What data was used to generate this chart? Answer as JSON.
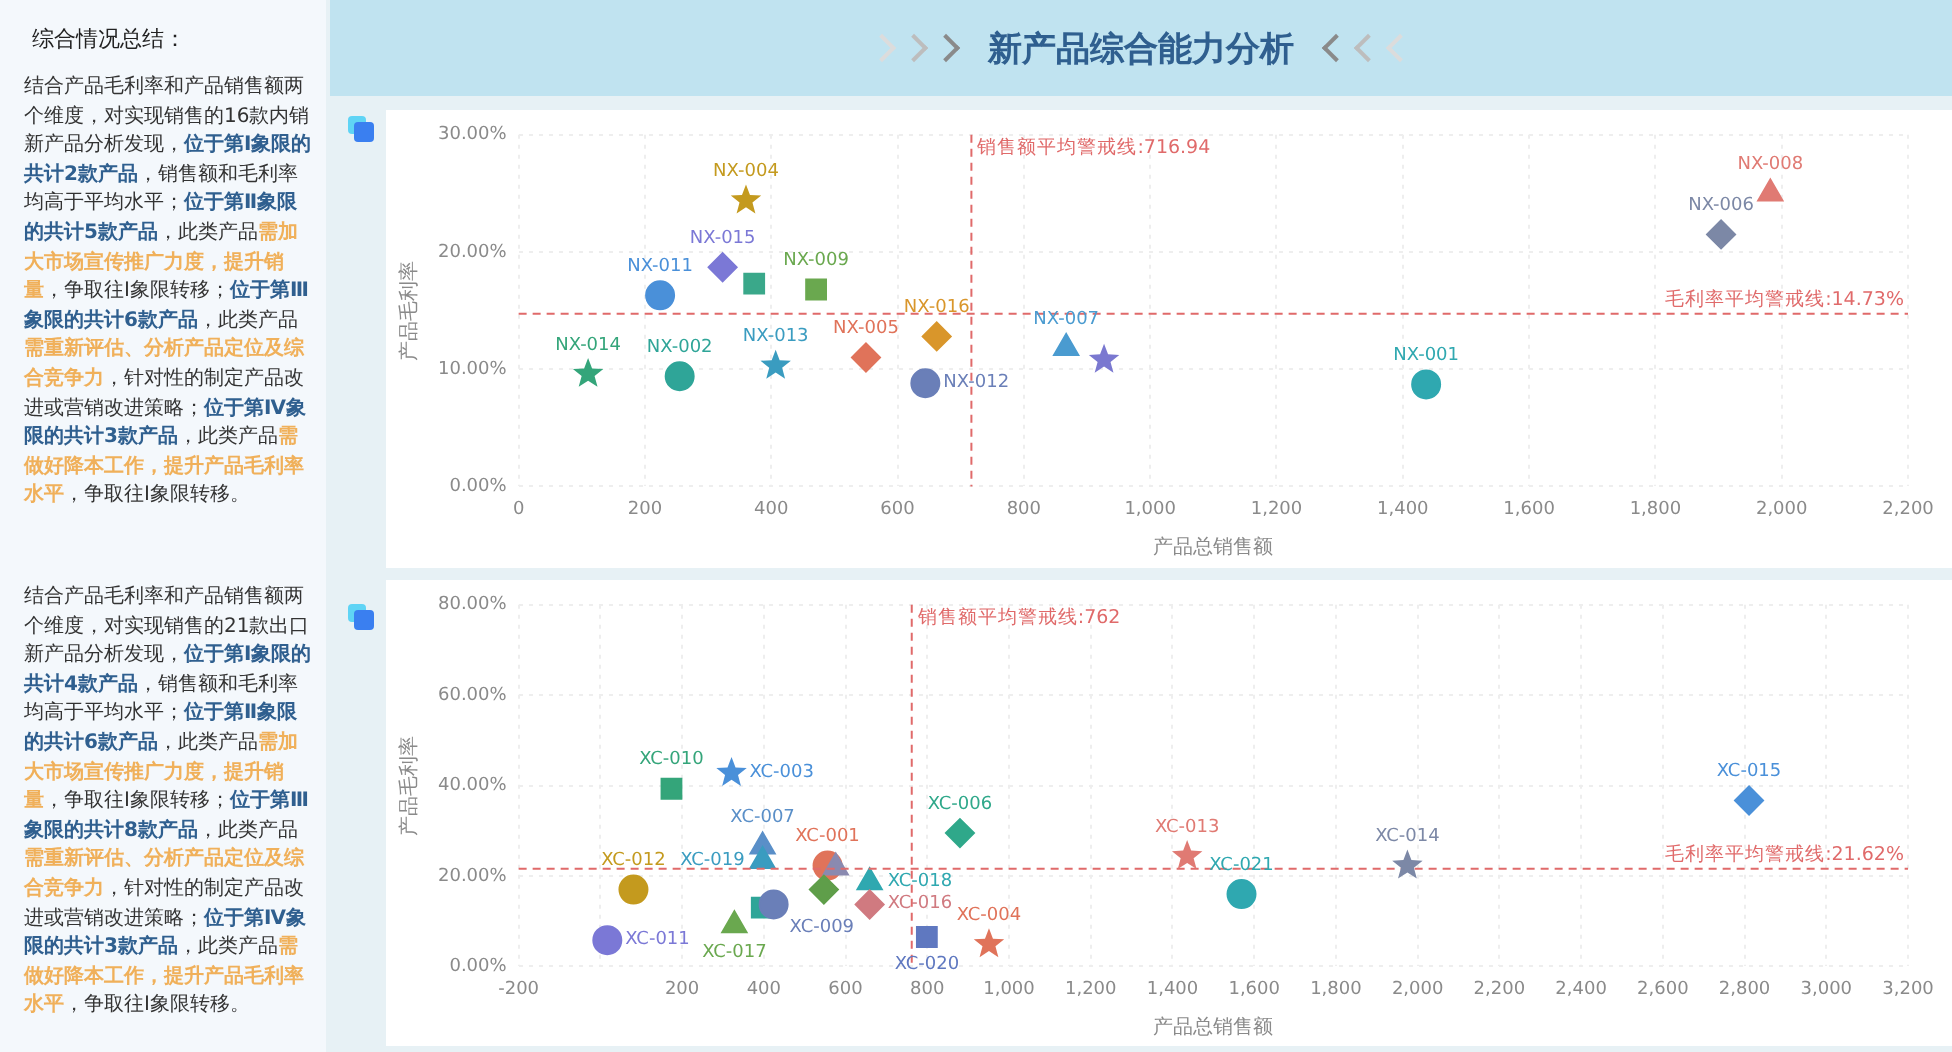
{
  "chart_data": [
    {
      "type": "other",
      "title": "新产品综合能力分析"
    },
    {
      "type": "other",
      "title": "综合情况总结：",
      "annotations": [
        "结合产品毛利率和产品销售额两个维度，对实现销售的16款内销新产品分析发现，",
        "位于第Ⅰ象限的共计2款产品",
        "，销售额和毛利率均高于平均水平；",
        "位于第Ⅱ象限的共计5款产品",
        "，此类产品",
        "需加大市场宣传推广力度，提升销量",
        "，争取往Ⅰ象限转移；",
        "位于第Ⅲ象限的共计6款产品",
        "，此类产品",
        "需重新评估、分析产品定位及综合竞争力",
        "，针对性的制定产品改进或营销改进策略；",
        "位于第Ⅳ象限的共计3款产品",
        "，此类产品",
        "需做好降本工作，提升产品毛利率水平",
        "，争取往Ⅰ象限转移。"
      ],
      "colors": [
        "#333333",
        "#2f5f8f",
        "#333333",
        "#2f5f8f",
        "#333333",
        "#f0b05a",
        "#333333",
        "#2f5f8f",
        "#333333",
        "#f0b05a",
        "#333333",
        "#2f5f8f",
        "#333333",
        "#f0b05a",
        "#333333"
      ]
    },
    {
      "type": "scatter",
      "xlabel": "产品总销售额",
      "ylabel": "产品毛利率",
      "xlim": [
        0,
        2200
      ],
      "xticks": [
        0,
        200,
        400,
        600,
        800,
        {
          "value": 1000,
          "label": "1,000"
        },
        {
          "value": 1200,
          "label": "1,200"
        },
        {
          "value": 1400,
          "label": "1,400"
        },
        {
          "value": 1600,
          "label": "1,600"
        },
        {
          "value": 1800,
          "label": "1,800"
        },
        {
          "value": 2000,
          "label": "2,000"
        },
        {
          "value": 2200,
          "label": "2,200"
        }
      ],
      "ylim": [
        0,
        30
      ],
      "yticks": [
        {
          "value": 0,
          "label": "0.00%"
        },
        {
          "value": 10,
          "label": "10.00%"
        },
        {
          "value": 20,
          "label": "20.00%"
        },
        {
          "value": 30,
          "label": "30.00%"
        }
      ],
      "grid": true,
      "legend": false,
      "ref_lines": [
        {
          "axis": "x",
          "value": 716.94,
          "label": "销售额平均警戒线:716.94",
          "color": "#e06a6a",
          "line_style": "dashed"
        },
        {
          "axis": "y",
          "value": 14.73,
          "label": "毛利率平均警戒线:14.73%",
          "color": "#e06a6a",
          "line_style": "dashed"
        }
      ],
      "series": [
        {
          "name": "NX-011",
          "color": "#4a90d9",
          "marker": "circle",
          "x": [
            224
          ],
          "values": [
            16.3
          ]
        },
        {
          "name": "NX-015",
          "color": "#7b78d6",
          "marker": "diamond",
          "x": [
            323
          ],
          "values": [
            18.7
          ]
        },
        {
          "name": "NX-004",
          "color": "#c49a1e",
          "marker": "star",
          "x": [
            360
          ],
          "values": [
            24.4
          ]
        },
        {
          "color": "#3aa88a",
          "marker": "square",
          "x": [
            373
          ],
          "values": [
            17.3
          ]
        },
        {
          "name": "NX-009",
          "color": "#6aa84f",
          "marker": "square",
          "x": [
            471
          ],
          "values": [
            16.8
          ]
        },
        {
          "name": "NX-014",
          "color": "#34a57a",
          "marker": "star",
          "x": [
            110
          ],
          "values": [
            9.6
          ]
        },
        {
          "name": "NX-002",
          "color": "#2fa598",
          "marker": "circle",
          "x": [
            255
          ],
          "values": [
            9.4
          ]
        },
        {
          "name": "NX-013",
          "color": "#3a9cc0",
          "marker": "star",
          "x": [
            407
          ],
          "values": [
            10.3
          ]
        },
        {
          "name": "NX-005",
          "color": "#e0735a",
          "marker": "diamond",
          "x": [
            550
          ],
          "values": [
            11.0
          ]
        },
        {
          "name": "NX-012",
          "color": "#6a7fb8",
          "marker": "circle",
          "x": [
            644
          ],
          "values": [
            8.8
          ]
        },
        {
          "name": "NX-016",
          "color": "#d9962b",
          "marker": "diamond",
          "x": [
            662
          ],
          "values": [
            12.8
          ]
        },
        {
          "name": "NX-007",
          "color": "#4a9bd0",
          "marker": "triangle",
          "x": [
            867
          ],
          "values": [
            11.8
          ]
        },
        {
          "color": "#7a78d0",
          "marker": "star",
          "x": [
            927
          ],
          "values": [
            10.8
          ]
        },
        {
          "name": "NX-001",
          "color": "#2fa8b0",
          "marker": "circle",
          "x": [
            1437
          ],
          "values": [
            8.7
          ]
        },
        {
          "name": "NX-006",
          "color": "#7c88a6",
          "marker": "diamond",
          "x": [
            1904
          ],
          "values": [
            21.5
          ]
        },
        {
          "name": "NX-008",
          "color": "#e07a73",
          "marker": "triangle",
          "x": [
            1982
          ],
          "values": [
            25.0
          ]
        }
      ]
    },
    {
      "type": "other",
      "annotations": [
        "结合产品毛利率和产品销售额两个维度，对实现销售的21款出口新产品分析发现，",
        "位于第Ⅰ象限的共计4款产品",
        "，销售额和毛利率均高于平均水平；",
        "位于第Ⅱ象限的共计6款产品",
        "，此类产品",
        "需加大市场宣传推广力度，提升销量",
        "，争取往Ⅰ象限转移；",
        "位于第Ⅲ象限的共计8款产品",
        "，此类产品",
        "需重新评估、分析产品定位及综合竞争力",
        "，针对性的制定产品改进或营销改进策略；",
        "位于第Ⅳ象限的共计3款产品",
        "，此类产品",
        "需做好降本工作，提升产品毛利率水平",
        "，争取往Ⅰ象限转移。"
      ],
      "colors": [
        "#333333",
        "#2f5f8f",
        "#333333",
        "#2f5f8f",
        "#333333",
        "#f0b05a",
        "#333333",
        "#2f5f8f",
        "#333333",
        "#f0b05a",
        "#333333",
        "#2f5f8f",
        "#333333",
        "#f0b05a",
        "#333333"
      ]
    },
    {
      "type": "scatter",
      "xlabel": "产品总销售额",
      "ylabel": "产品毛利率",
      "xlim": [
        -200,
        3200
      ],
      "xticks": [
        -200,
        {
          "value": 0,
          "label": null
        },
        200,
        400,
        600,
        800,
        {
          "value": 1000,
          "label": "1,000"
        },
        {
          "value": 1200,
          "label": "1,200"
        },
        {
          "value": 1400,
          "label": "1,400"
        },
        {
          "value": 1600,
          "label": "1,600"
        },
        {
          "value": 1800,
          "label": "1,800"
        },
        {
          "value": 2000,
          "label": "2,000"
        },
        {
          "value": 2200,
          "label": "2,200"
        },
        {
          "value": 2400,
          "label": "2,400"
        },
        {
          "value": 2600,
          "label": "2,600"
        },
        {
          "value": 2800,
          "label": "2,800"
        },
        {
          "value": 3000,
          "label": "3,000"
        },
        {
          "value": 3200,
          "label": "3,200"
        }
      ],
      "ylim": [
        0,
        80
      ],
      "yticks": [
        {
          "value": 0,
          "label": "0.00%"
        },
        {
          "value": 20,
          "label": "20.00%"
        },
        {
          "value": 40,
          "label": "40.00%"
        },
        {
          "value": 60,
          "label": "60.00%"
        },
        {
          "value": 80,
          "label": "80.00%"
        }
      ],
      "grid": true,
      "legend": false,
      "ref_lines": [
        {
          "axis": "x",
          "value": 762,
          "label": "销售额平均警戒线:762",
          "color": "#e06a6a",
          "line_style": "dashed"
        },
        {
          "axis": "y",
          "value": 21.62,
          "label": "毛利率平均警戒线:21.62%",
          "color": "#e06a6a",
          "line_style": "dashed"
        }
      ],
      "series": [
        {
          "name": "XC-010",
          "color": "#34a57a",
          "marker": "square",
          "x": [
            174
          ],
          "values": [
            39.3
          ]
        },
        {
          "name": "XC-003",
          "color": "#4a90d9",
          "marker": "star",
          "x": [
            321
          ],
          "values": [
            42.8
          ]
        },
        {
          "name": "XC-007",
          "color": "#5a8fc8",
          "marker": "triangle",
          "x": [
            397
          ],
          "values": [
            26.5
          ]
        },
        {
          "name": "XC-019",
          "color": "#3a9cc0",
          "marker": "triangle",
          "x": [
            397
          ],
          "values": [
            23.3
          ]
        },
        {
          "name": "XC-001",
          "color": "#e0735a",
          "marker": "circle",
          "x": [
            556
          ],
          "values": [
            22.3
          ]
        },
        {
          "color": "#8a8ab0",
          "marker": "triangle",
          "x": [
            576
          ],
          "values": [
            21.9
          ]
        },
        {
          "name": "XC-012",
          "color": "#c49a1e",
          "marker": "circle",
          "x": [
            81
          ],
          "values": [
            17.0
          ]
        },
        {
          "name": "XC-011",
          "color": "#7b78d6",
          "marker": "circle",
          "x": [
            17
          ],
          "values": [
            5.8
          ]
        },
        {
          "name": "XC-017",
          "color": "#6aa84f",
          "marker": "triangle",
          "x": [
            328
          ],
          "values": [
            9.1
          ]
        },
        {
          "color": "#2fa598",
          "marker": "square",
          "x": [
            395
          ],
          "values": [
            13.0
          ]
        },
        {
          "name": "XC-009",
          "color": "#6a7fb8",
          "marker": "circle",
          "x": [
            424
          ],
          "values": [
            13.7
          ]
        },
        {
          "color": "#5f9e4a",
          "marker": "diamond",
          "x": [
            547
          ],
          "values": [
            17.0
          ]
        },
        {
          "name": "XC-018",
          "color": "#2fa8b0",
          "marker": "triangle",
          "x": [
            659
          ],
          "values": [
            18.6
          ]
        },
        {
          "name": "XC-016",
          "color": "#d07a80",
          "marker": "diamond",
          "x": [
            659
          ],
          "values": [
            13.7
          ]
        },
        {
          "name": "XC-020",
          "color": "#5f78c0",
          "marker": "square",
          "x": [
            799
          ],
          "values": [
            6.5
          ]
        },
        {
          "name": "XC-006",
          "color": "#2fa88a",
          "marker": "diamond",
          "x": [
            880
          ],
          "values": [
            29.5
          ]
        },
        {
          "name": "XC-004",
          "color": "#e0735a",
          "marker": "star",
          "x": [
            951
          ],
          "values": [
            4.9
          ]
        },
        {
          "name": "XC-013",
          "color": "#e07a73",
          "marker": "star",
          "x": [
            1436
          ],
          "values": [
            24.4
          ]
        },
        {
          "name": "XC-021",
          "color": "#2fa8b0",
          "marker": "circle",
          "x": [
            1569
          ],
          "values": [
            16.0
          ]
        },
        {
          "name": "XC-014",
          "color": "#7c88a6",
          "marker": "star",
          "x": [
            1975
          ],
          "values": [
            22.3
          ]
        },
        {
          "name": "XC-015",
          "color": "#4a90d9",
          "marker": "diamond",
          "x": [
            2811
          ],
          "values": [
            36.7
          ]
        }
      ]
    }
  ]
}
